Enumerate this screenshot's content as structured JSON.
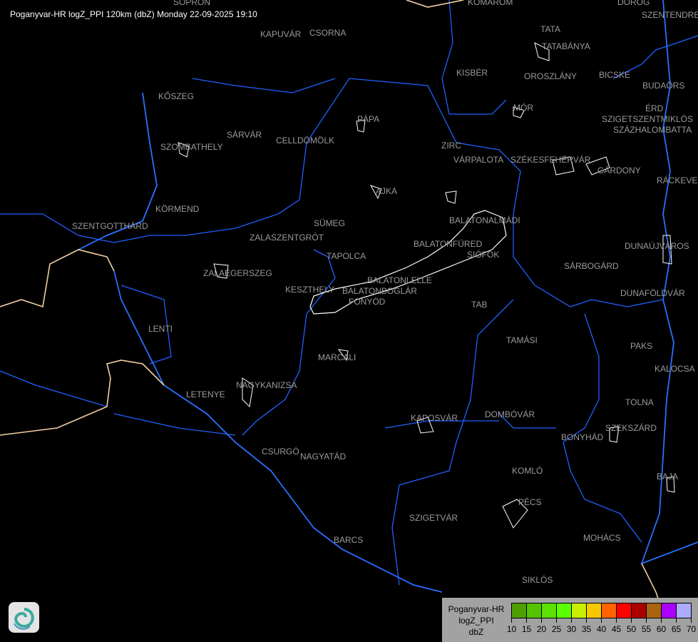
{
  "title": "Poganyvar-HR logZ_PPI 120km (dbZ) Monday 22-09-2025 19:10",
  "cities": [
    "SOPRON",
    "KOMÁROM",
    "DOROG",
    "SZENTENDRE",
    "KAPUVÁR",
    "CSORNA",
    "TATA",
    "TATABÁNYA",
    "KISBÉR",
    "OROSZLÁNY",
    "BICSKE",
    "BUDAÖRS",
    "KŐSZEG",
    "ÉRD",
    "MÓR",
    "SZIGETSZENTMIKLÓS",
    "SZÁZHALOMBATTA",
    "PÁPA",
    "SÁRVÁR",
    "CELLDÖMÖLK",
    "SZOMBATHELY",
    "ZIRC",
    "VÁRPALOTA",
    "SZÉKESFEHÉRVÁR",
    "GÁRDONY",
    "RÁCKEVE",
    "AJKA",
    "KÖRMEND",
    "BALATONALMÁDI",
    "SZENTGOTTHÁRD",
    "SÜMEG",
    "ZALASZENTGRÓT",
    "BALATONFÜRED",
    "DUNAÚJVÁROS",
    "SIÓFOK",
    "TAPOLCA",
    "SÁRBOGÁRD",
    "ZALAEGERSZEG",
    "BALATONLELLE",
    "KESZTHELY",
    "BALATONBOGLÁR",
    "DUNAFÖLDVÁR",
    "FONYÓD",
    "TAB",
    "LENTI",
    "TAMÁSI",
    "PAKS",
    "MARCALI",
    "KALOCSA",
    "NAGYKANIZSA",
    "LETENYE",
    "TOLNA",
    "KAPOSVÁR",
    "DOMBÓVÁR",
    "SZEKSZÁRD",
    "BONYHÁD",
    "CSURGÓ",
    "NAGYATÁD",
    "KOMLÓ",
    "BAJA",
    "PÉCS",
    "SZIGETVÁR",
    "MOHÁCS",
    "BARCS",
    "SIKLÓS"
  ],
  "legend": {
    "station": "Poganyvar-HR",
    "product": "logZ_PPI",
    "unit": "dbZ",
    "ticks": [
      "10",
      "15",
      "20",
      "25",
      "30",
      "35",
      "40",
      "45",
      "50",
      "55",
      "60",
      "65",
      "70"
    ],
    "colors": [
      "#4ea000",
      "#52c400",
      "#5ce000",
      "#5aff00",
      "#c8ee00",
      "#f6c800",
      "#ff6400",
      "#ff0000",
      "#aa0000",
      "#a86410",
      "#aa00ff",
      "#aaaaff"
    ]
  },
  "map_colors": {
    "background": "#000000",
    "rivers": "#2060ff",
    "borders": "#f0d0a0",
    "radar_echo": "#ffffff",
    "labels": "#9a9a9a"
  },
  "logo_icon": "swirl-logo-icon"
}
